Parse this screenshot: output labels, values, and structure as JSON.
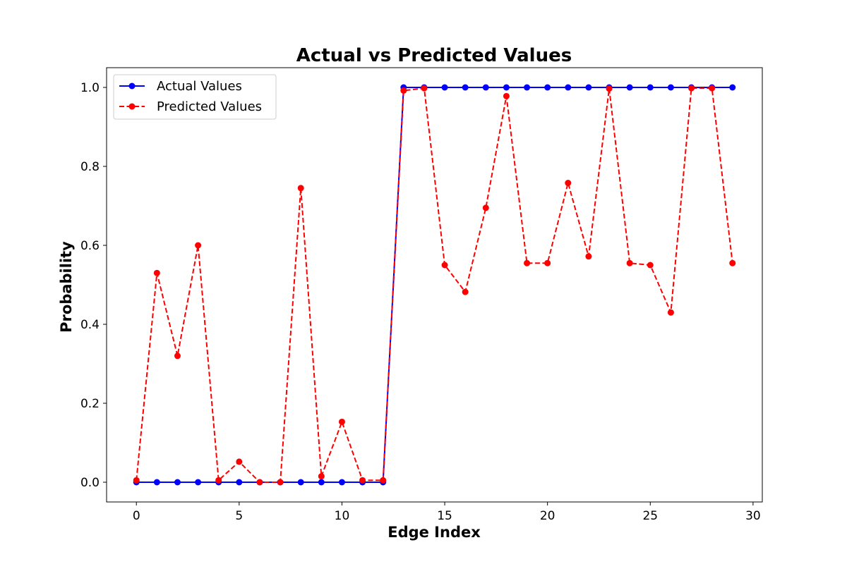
{
  "chart_data": {
    "type": "line",
    "title": "Actual vs Predicted Values",
    "xlabel": "Edge Index",
    "ylabel": "Probability",
    "xlim": [
      -1.45,
      30.45
    ],
    "ylim": [
      -0.05,
      1.05
    ],
    "xticks": [
      0,
      5,
      10,
      15,
      20,
      25,
      30
    ],
    "xtick_labels": [
      "0",
      "5",
      "10",
      "15",
      "20",
      "25",
      "30"
    ],
    "yticks": [
      0.0,
      0.2,
      0.4,
      0.6,
      0.8,
      1.0
    ],
    "ytick_labels": [
      "0.0",
      "0.2",
      "0.4",
      "0.6",
      "0.8",
      "1.0"
    ],
    "grid": false,
    "legend_position": "top-left",
    "x": [
      0,
      1,
      2,
      3,
      4,
      5,
      6,
      7,
      8,
      9,
      10,
      11,
      12,
      13,
      14,
      15,
      16,
      17,
      18,
      19,
      20,
      21,
      22,
      23,
      24,
      25,
      26,
      27,
      28,
      29
    ],
    "series": [
      {
        "name": "Actual Values",
        "color": "#0000ff",
        "line_style": "solid",
        "marker": "circle",
        "values": [
          0,
          0,
          0,
          0,
          0,
          0,
          0,
          0,
          0,
          0,
          0,
          0,
          0,
          1,
          1,
          1,
          1,
          1,
          1,
          1,
          1,
          1,
          1,
          1,
          1,
          1,
          1,
          1,
          1,
          1
        ]
      },
      {
        "name": "Predicted Values",
        "color": "#ff0000",
        "line_style": "dashed",
        "marker": "circle",
        "values": [
          0.005,
          0.53,
          0.32,
          0.6,
          0.005,
          0.052,
          0.0,
          0.0,
          0.745,
          0.015,
          0.153,
          0.005,
          0.005,
          0.992,
          0.998,
          0.55,
          0.482,
          0.695,
          0.978,
          0.555,
          0.555,
          0.758,
          0.572,
          0.997,
          0.555,
          0.55,
          0.43,
          0.998,
          0.998,
          0.555
        ]
      }
    ]
  }
}
